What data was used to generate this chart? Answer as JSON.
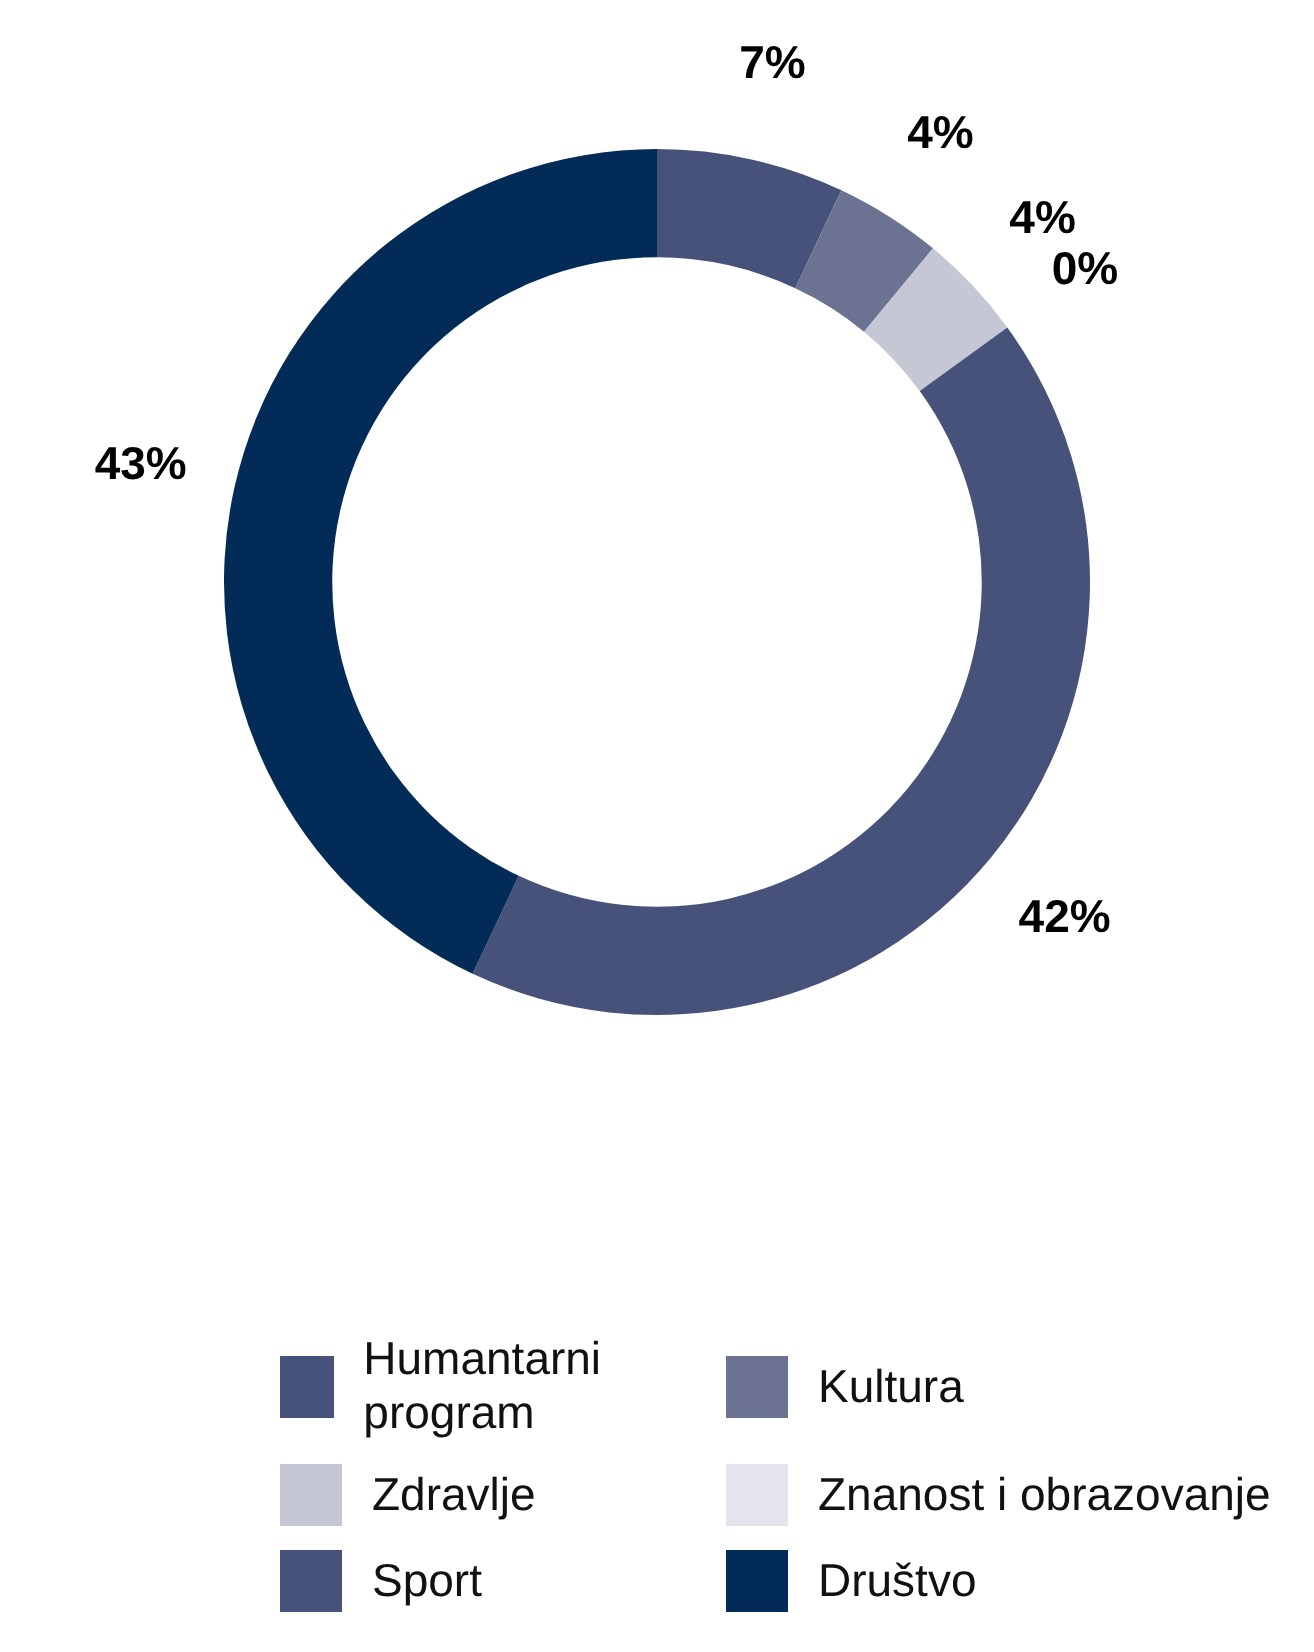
{
  "chart_data": {
    "type": "donut",
    "categories": [
      "Humantarni program",
      "Kultura",
      "Zdravlje",
      "Znanost i obrazovanje",
      "Sport",
      "Društvo"
    ],
    "values": [
      7,
      4,
      4,
      0,
      42,
      43
    ],
    "value_labels": [
      "7%",
      "4%",
      "4%",
      "0%",
      "42%",
      "43%"
    ],
    "colors": [
      "#46527a",
      "#6b7292",
      "#c5c7d5",
      "#e4e5ec",
      "#46527a",
      "#032b57"
    ],
    "legend": "bottom"
  }
}
